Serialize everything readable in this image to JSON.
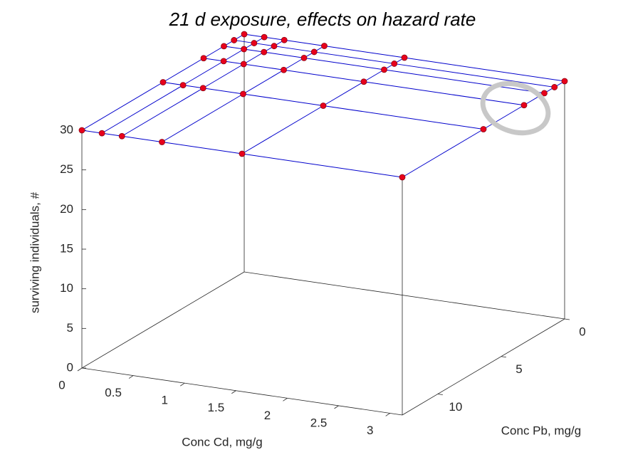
{
  "chart_data": {
    "type": "mesh3d",
    "title": "21 d exposure, effects on hazard rate",
    "xlabel": "Conc Cd, mg/g",
    "ylabel": "Conc Pb, mg/g",
    "zlabel": "surviving individuals, #",
    "x": [
      0,
      0.195,
      0.39,
      0.78,
      1.56,
      3.12
    ],
    "y": [
      0,
      0.8,
      1.6,
      3.2,
      6.4,
      12.8
    ],
    "z": [
      [
        30,
        30,
        30,
        30,
        30,
        30
      ],
      [
        30,
        30,
        30,
        30,
        30,
        30
      ],
      [
        30,
        30,
        30,
        30,
        30,
        30
      ],
      [
        30,
        30,
        30,
        30,
        30,
        30
      ],
      [
        30,
        30,
        30,
        30,
        30,
        30
      ],
      [
        30,
        30,
        30,
        30,
        30,
        30
      ]
    ],
    "xlim": [
      0,
      3.12
    ],
    "ylim": [
      0,
      12.8
    ],
    "zlim": [
      0,
      30
    ],
    "xticks": [
      0,
      0.5,
      1,
      1.5,
      2,
      2.5,
      3
    ],
    "yticks": [
      0,
      5,
      10
    ],
    "zticks": [
      0,
      5,
      10,
      15,
      20,
      25,
      30
    ],
    "line_color": "#0000cc",
    "marker_color": "#e8001c"
  }
}
